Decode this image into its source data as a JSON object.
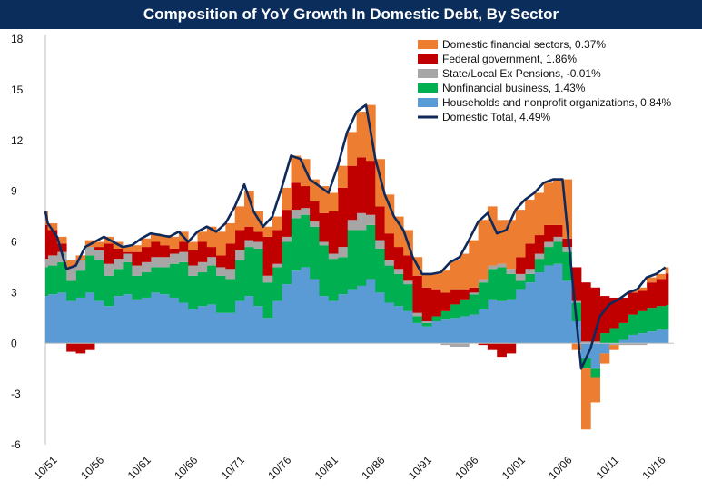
{
  "chart_data": {
    "type": "area",
    "title": "Composition of YoY Growth In Domestic Debt, By Sector",
    "xlabel": "",
    "ylabel": "",
    "ylim": [
      -6,
      18
    ],
    "y_ticks": [
      18,
      15,
      12,
      9,
      6,
      3,
      0,
      -3,
      -6
    ],
    "x_tick_labels": [
      "10/51",
      "10/56",
      "10/61",
      "10/66",
      "10/71",
      "10/76",
      "10/81",
      "10/86",
      "10/91",
      "10/96",
      "10/01",
      "10/06",
      "10/11",
      "10/16"
    ],
    "legend_position": "top-right",
    "grid": false,
    "x": [
      1951.75,
      1952,
      1953,
      1954,
      1955,
      1956,
      1957,
      1958,
      1959,
      1960,
      1961,
      1962,
      1963,
      1964,
      1965,
      1966,
      1967,
      1968,
      1969,
      1970,
      1971,
      1972,
      1973,
      1974,
      1975,
      1976,
      1977,
      1978,
      1979,
      1980,
      1981,
      1982,
      1983,
      1984,
      1985,
      1986,
      1987,
      1988,
      1989,
      1990,
      1991,
      1992,
      1993,
      1994,
      1995,
      1996,
      1997,
      1998,
      1999,
      2000,
      2001,
      2002,
      2003,
      2004,
      2005,
      2006,
      2007,
      2008,
      2009,
      2010,
      2011,
      2012,
      2013,
      2014,
      2015,
      2016,
      2017,
      2018
    ],
    "series": [
      {
        "name": "Households and nonprofit organizations, 0.84%",
        "color": "#5b9bd5",
        "values": [
          2.8,
          2.9,
          3.0,
          2.5,
          2.7,
          3.0,
          2.5,
          2.2,
          2.8,
          2.9,
          2.6,
          2.7,
          3.0,
          2.9,
          2.7,
          2.4,
          2.0,
          2.2,
          2.3,
          1.8,
          1.8,
          2.5,
          2.8,
          2.2,
          1.5,
          2.5,
          3.5,
          4.3,
          4.5,
          3.8,
          2.8,
          2.5,
          2.9,
          3.2,
          3.4,
          3.8,
          3.0,
          2.4,
          2.2,
          1.9,
          1.2,
          1.0,
          1.3,
          1.4,
          1.5,
          1.6,
          1.7,
          2.0,
          2.6,
          2.5,
          2.6,
          3.2,
          3.6,
          4.2,
          4.6,
          4.7,
          3.7,
          1.3,
          -0.9,
          -1.5,
          -0.6,
          0.0,
          0.2,
          0.5,
          0.6,
          0.7,
          0.8,
          0.84
        ]
      },
      {
        "name": "Nonfinancial business, 1.43%",
        "color": "#00b050",
        "values": [
          1.7,
          1.7,
          1.8,
          1.2,
          1.6,
          2.2,
          2.4,
          1.8,
          1.6,
          1.9,
          1.4,
          1.5,
          1.5,
          1.6,
          2.0,
          2.4,
          2.0,
          2.0,
          2.3,
          2.2,
          2.0,
          2.4,
          2.9,
          3.4,
          2.1,
          2.0,
          2.5,
          3.1,
          3.1,
          3.1,
          3.0,
          2.5,
          2.2,
          3.5,
          3.3,
          3.2,
          2.6,
          2.2,
          1.9,
          1.6,
          0.4,
          0.2,
          0.3,
          0.5,
          0.8,
          1.0,
          1.2,
          1.6,
          1.8,
          2.0,
          1.5,
          0.5,
          0.5,
          0.8,
          1.1,
          1.3,
          1.7,
          1.1,
          -0.6,
          -0.5,
          0.6,
          0.9,
          1.0,
          1.2,
          1.3,
          1.4,
          1.4,
          1.43
        ]
      },
      {
        "name": "State/Local Ex Pensions, -0.01%",
        "color": "#a6a6a6",
        "values": [
          0.5,
          0.6,
          0.6,
          0.8,
          0.6,
          0.5,
          0.6,
          0.7,
          0.6,
          0.5,
          0.6,
          0.6,
          0.6,
          0.6,
          0.6,
          0.6,
          0.6,
          0.6,
          0.5,
          0.5,
          0.6,
          0.6,
          0.4,
          0.4,
          0.4,
          0.2,
          0.3,
          0.5,
          0.4,
          0.3,
          0.2,
          0.3,
          0.6,
          0.6,
          1.0,
          0.6,
          0.5,
          0.3,
          0.3,
          0.2,
          0.2,
          0.1,
          0.0,
          -0.1,
          -0.2,
          -0.2,
          0.1,
          0.2,
          0.2,
          0.2,
          0.3,
          0.4,
          0.3,
          0.3,
          0.3,
          0.3,
          0.3,
          0.1,
          0.1,
          0.1,
          0.0,
          -0.1,
          -0.1,
          -0.1,
          -0.1,
          0.0,
          0.0,
          -0.01
        ]
      },
      {
        "name": "Federal government, 1.86%",
        "color": "#c00000",
        "values": [
          2.0,
          1.5,
          0.5,
          -0.5,
          -0.6,
          -0.4,
          0.2,
          1.2,
          0.6,
          0.1,
          0.8,
          0.9,
          0.9,
          0.7,
          0.3,
          0.6,
          0.9,
          1.2,
          0.6,
          0.7,
          1.5,
          1.2,
          0.8,
          0.6,
          2.3,
          2.0,
          1.6,
          1.6,
          1.3,
          1.2,
          1.7,
          2.5,
          3.5,
          3.2,
          3.3,
          3.2,
          2.0,
          1.6,
          1.3,
          1.5,
          2.2,
          2.0,
          1.6,
          1.1,
          0.9,
          0.6,
          0.3,
          -0.1,
          -0.4,
          -0.8,
          -0.6,
          1.0,
          1.5,
          1.1,
          1.0,
          0.7,
          0.5,
          2.0,
          3.5,
          3.2,
          2.2,
          1.8,
          1.5,
          1.3,
          1.2,
          1.5,
          1.6,
          1.86
        ]
      },
      {
        "name": "Domestic financial sectors, 0.37%",
        "color": "#ed7d31",
        "values": [
          0.8,
          0.4,
          0.4,
          0.4,
          0.3,
          0.4,
          0.3,
          0.4,
          0.4,
          0.3,
          0.4,
          0.5,
          0.5,
          0.6,
          0.7,
          0.6,
          0.5,
          0.6,
          1.2,
          1.4,
          1.2,
          1.4,
          2.1,
          1.2,
          0.6,
          0.8,
          1.3,
          1.6,
          1.6,
          1.3,
          1.6,
          1.1,
          1.3,
          2.0,
          2.7,
          3.3,
          2.8,
          2.3,
          1.8,
          1.5,
          1.1,
          0.8,
          0.9,
          1.3,
          1.7,
          2.1,
          2.8,
          3.5,
          3.5,
          2.6,
          2.9,
          2.8,
          2.6,
          2.5,
          2.5,
          2.7,
          3.5,
          -0.4,
          -3.6,
          -1.5,
          -0.6,
          -0.3,
          0.0,
          0.1,
          0.2,
          0.3,
          0.3,
          0.37
        ]
      }
    ],
    "total": {
      "name": "Domestic Total, 4.49%",
      "color": "#0f2a5a",
      "values": [
        7.8,
        7.1,
        6.3,
        4.4,
        4.6,
        5.7,
        6.0,
        6.3,
        6.0,
        5.7,
        5.8,
        6.2,
        6.5,
        6.4,
        6.3,
        6.6,
        6.0,
        6.6,
        6.9,
        6.6,
        7.1,
        8.1,
        9.4,
        7.8,
        6.9,
        7.5,
        9.2,
        11.1,
        10.9,
        9.7,
        9.3,
        8.9,
        10.5,
        12.5,
        13.7,
        14.1,
        10.9,
        8.8,
        7.5,
        6.7,
        5.1,
        4.1,
        4.1,
        4.2,
        4.8,
        5.1,
        6.1,
        7.2,
        7.7,
        6.5,
        6.7,
        7.9,
        8.5,
        8.9,
        9.5,
        9.7,
        9.7,
        4.1,
        -1.5,
        -0.3,
        1.6,
        2.3,
        2.6,
        3.0,
        3.2,
        3.9,
        4.1,
        4.49
      ]
    }
  }
}
